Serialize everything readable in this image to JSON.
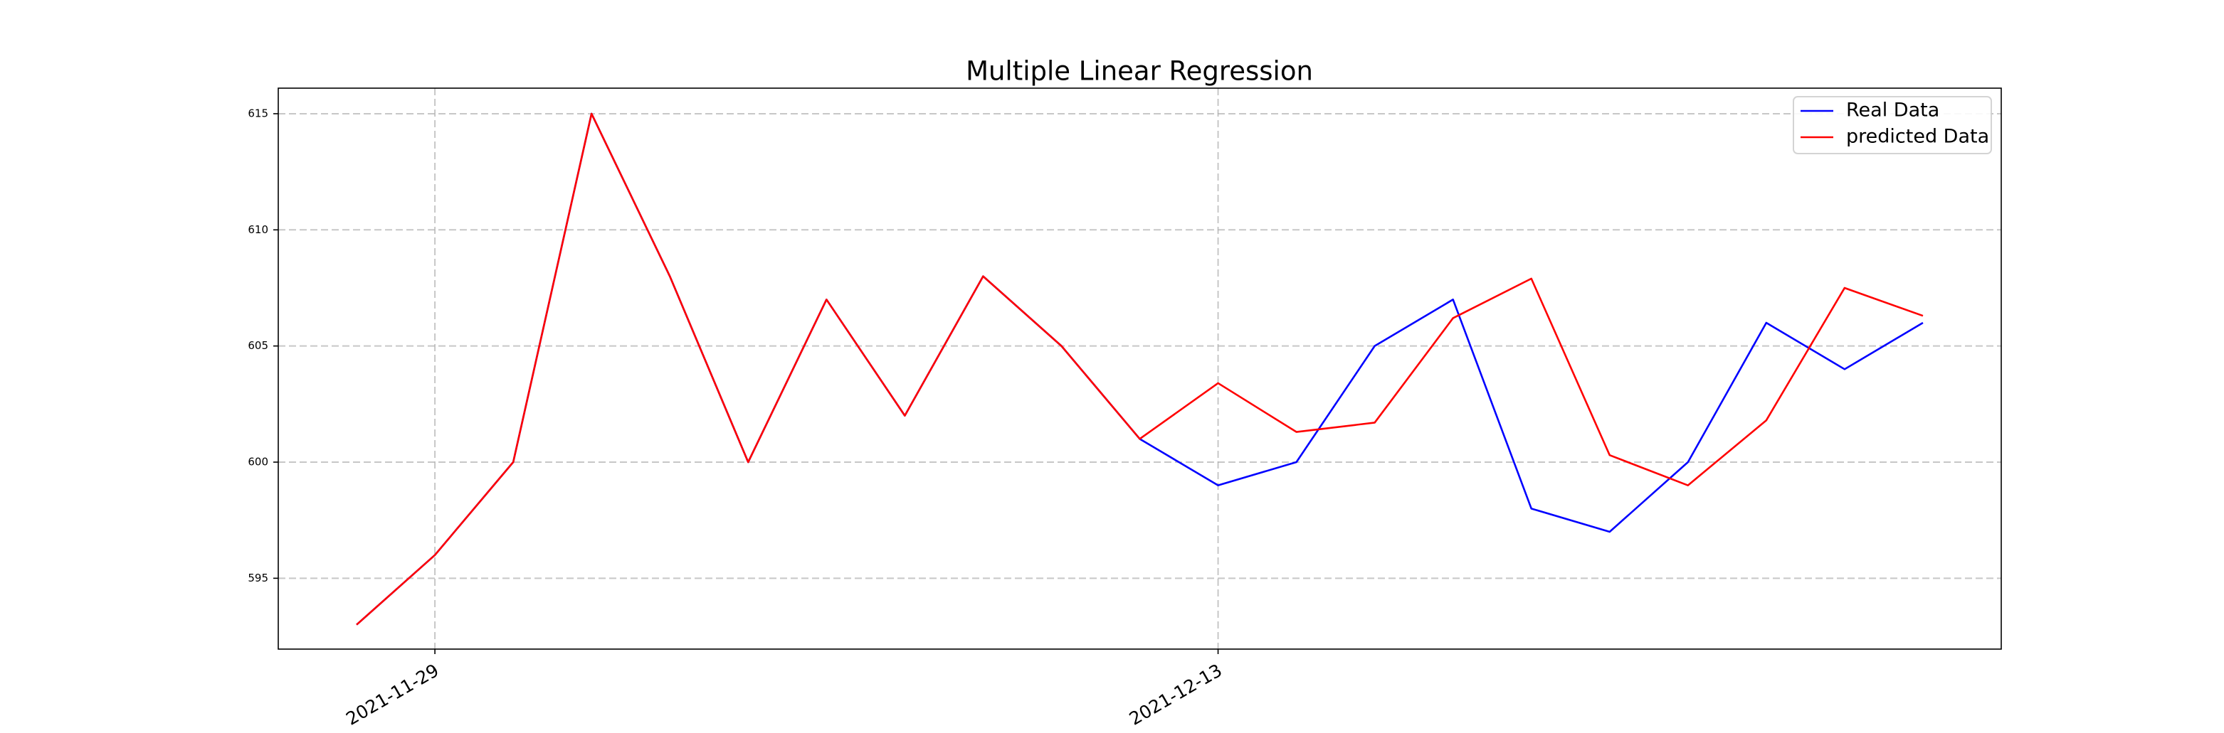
{
  "chart_data": {
    "type": "line",
    "title": "Multiple Linear Regression",
    "categories": [
      null,
      "2021-11-29",
      null,
      null,
      null,
      null,
      null,
      null,
      null,
      null,
      null,
      "2021-12-13",
      null,
      null,
      null,
      null,
      null,
      null,
      null,
      null,
      null
    ],
    "series": [
      {
        "name": "Real Data",
        "color": "#0000ff",
        "values": [
          593,
          596,
          600,
          615,
          608,
          600,
          607,
          602,
          608,
          605,
          601,
          599,
          600,
          605,
          607,
          598,
          597,
          600,
          606,
          604,
          606
        ]
      },
      {
        "name": "predicted Data",
        "color": "#ff0000",
        "values": [
          593,
          596,
          600,
          615,
          608,
          600,
          607,
          602,
          608,
          605,
          601,
          603.4,
          601.3,
          601.7,
          606.2,
          607.9,
          600.3,
          599,
          601.8,
          607.5,
          606.3
        ]
      }
    ],
    "ylim": [
      591.95,
      616.1
    ],
    "yticks": [
      595,
      600,
      605,
      610,
      615
    ],
    "grid": true,
    "legend": "upper right"
  }
}
